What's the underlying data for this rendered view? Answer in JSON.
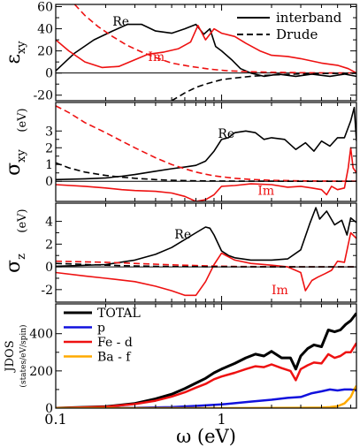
{
  "colors": {
    "black": "#000000",
    "red": "#ee1111",
    "blue": "#1111dd",
    "orange": "#ffaa00"
  },
  "chart_data": [
    {
      "type": "line",
      "xscale": "log",
      "xlim": [
        0.1,
        6.5
      ],
      "ylim": [
        -25,
        62
      ],
      "ylabel_main": "ε",
      "ylabel_sub": "xy",
      "yticks": [
        -20,
        0,
        20,
        40,
        60
      ],
      "legend": {
        "placement": "top-right",
        "items": [
          {
            "label": "interband",
            "style": "solid"
          },
          {
            "label": "Drude",
            "style": "dashed"
          }
        ]
      },
      "annotations": [
        {
          "text": "Re",
          "x": 0.22,
          "y": 43,
          "color": "black"
        },
        {
          "text": "Im",
          "x": 0.36,
          "y": 11,
          "color": "red"
        }
      ],
      "series": [
        {
          "color": "black",
          "style": "solid",
          "x": [
            0.1,
            0.13,
            0.17,
            0.22,
            0.27,
            0.33,
            0.4,
            0.5,
            0.6,
            0.7,
            0.78,
            0.85,
            0.92,
            1.0,
            1.15,
            1.3,
            1.5,
            1.8,
            2.2,
            2.8,
            3.5,
            4.5,
            5.5,
            6.5
          ],
          "y": [
            2,
            18,
            30,
            38,
            44,
            44,
            38,
            36,
            40,
            44,
            35,
            40,
            24,
            20,
            12,
            4,
            0,
            -3,
            -1,
            -3,
            -1,
            -3,
            -1,
            -3
          ]
        },
        {
          "color": "red",
          "style": "solid",
          "x": [
            0.1,
            0.12,
            0.15,
            0.19,
            0.24,
            0.3,
            0.36,
            0.45,
            0.55,
            0.65,
            0.72,
            0.8,
            0.9,
            1.0,
            1.2,
            1.4,
            1.7,
            2.0,
            2.5,
            3.0,
            4.0,
            5.0,
            5.8,
            6.5
          ],
          "y": [
            30,
            20,
            10,
            5,
            6,
            12,
            17,
            19,
            22,
            28,
            43,
            30,
            40,
            36,
            33,
            27,
            20,
            16,
            15,
            13,
            9,
            7,
            4,
            0
          ]
        },
        {
          "color": "red",
          "style": "dashed",
          "x": [
            0.13,
            0.15,
            0.18,
            0.22,
            0.27,
            0.33,
            0.4,
            0.5,
            0.65,
            0.85,
            1.1,
            1.5,
            2.0,
            3.0,
            4.5,
            6.5
          ],
          "y": [
            62,
            52,
            42,
            33,
            25,
            19,
            14,
            9,
            6,
            3.5,
            2,
            1.2,
            0.7,
            0.3,
            0.1,
            0.05
          ]
        },
        {
          "color": "black",
          "style": "dashed",
          "x": [
            0.5,
            0.6,
            0.7,
            0.8,
            1.0,
            1.2,
            1.5,
            2.0,
            3.0,
            4.5,
            6.5
          ],
          "y": [
            -25,
            -18,
            -13,
            -10,
            -6,
            -4.5,
            -3,
            -1.8,
            -0.8,
            -0.35,
            -0.15
          ]
        }
      ]
    },
    {
      "type": "line",
      "xscale": "log",
      "xlim": [
        0.1,
        6.5
      ],
      "ylim": [
        -1.2,
        4.7
      ],
      "ylabel_main": "σ",
      "ylabel_sub": "xy",
      "ylabel_unit": "(eV)",
      "yticks": [
        0,
        1,
        2,
        3
      ],
      "annotations": [
        {
          "text": "Re",
          "x": 0.95,
          "y": 2.6,
          "color": "black"
        },
        {
          "text": "Im",
          "x": 1.65,
          "y": -0.8,
          "color": "red"
        }
      ],
      "series": [
        {
          "color": "black",
          "style": "solid",
          "x": [
            0.1,
            0.15,
            0.2,
            0.25,
            0.3,
            0.4,
            0.5,
            0.6,
            0.7,
            0.8,
            0.9,
            1.0,
            1.1,
            1.2,
            1.4,
            1.6,
            1.8,
            2.0,
            2.4,
            2.8,
            3.2,
            3.6,
            4.0,
            4.5,
            5.0,
            5.5,
            6.0,
            6.3,
            6.5
          ],
          "y": [
            0.1,
            0.15,
            0.2,
            0.3,
            0.4,
            0.6,
            0.75,
            0.85,
            0.95,
            1.2,
            1.8,
            2.5,
            2.6,
            2.9,
            3.0,
            2.9,
            2.5,
            2.6,
            2.5,
            1.9,
            2.3,
            1.8,
            2.4,
            2.1,
            2.6,
            2.6,
            3.6,
            4.4,
            2.4
          ]
        },
        {
          "color": "red",
          "style": "solid",
          "x": [
            0.1,
            0.15,
            0.2,
            0.25,
            0.3,
            0.4,
            0.5,
            0.6,
            0.7,
            0.8,
            0.9,
            1.0,
            1.2,
            1.5,
            2.0,
            2.5,
            3.0,
            3.5,
            4.0,
            4.3,
            4.6,
            5.0,
            5.5,
            5.8,
            6.0,
            6.2,
            6.5
          ],
          "y": [
            -0.2,
            -0.3,
            -0.4,
            -0.5,
            -0.55,
            -0.6,
            -0.7,
            -0.9,
            -1.2,
            -1.1,
            -0.8,
            -0.3,
            -0.25,
            -0.15,
            -0.2,
            -0.35,
            -0.3,
            -0.4,
            -0.5,
            -0.8,
            -0.3,
            -0.5,
            -0.4,
            0.8,
            2.0,
            0.8,
            0.5
          ]
        },
        {
          "color": "red",
          "style": "dashed",
          "x": [
            0.1,
            0.12,
            0.15,
            0.2,
            0.25,
            0.3,
            0.4,
            0.5,
            0.6,
            0.7,
            0.8,
            0.9,
            1.0,
            1.2,
            1.5,
            2.0,
            3.0,
            4.5,
            6.5
          ],
          "y": [
            4.5,
            4.1,
            3.5,
            2.9,
            2.4,
            2.0,
            1.4,
            1.0,
            0.75,
            0.55,
            0.42,
            0.33,
            0.27,
            0.18,
            0.11,
            0.06,
            0.025,
            0.01,
            0.005
          ]
        },
        {
          "color": "black",
          "style": "dashed",
          "x": [
            0.1,
            0.12,
            0.15,
            0.2,
            0.25,
            0.3,
            0.4,
            0.5,
            0.7,
            1.0,
            1.5,
            2.0,
            3.0,
            4.5,
            6.5
          ],
          "y": [
            1.1,
            0.8,
            0.55,
            0.35,
            0.25,
            0.18,
            0.1,
            0.06,
            0.03,
            0.015,
            0.007,
            0.004,
            0.002,
            0.001,
            0.0005
          ]
        }
      ]
    },
    {
      "type": "line",
      "xscale": "log",
      "xlim": [
        0.1,
        6.5
      ],
      "ylim": [
        -3.1,
        5.6
      ],
      "ylabel_main": "σ",
      "ylabel_sub": "z",
      "ylabel_unit": "(eV)",
      "yticks": [
        -2,
        0,
        2,
        4
      ],
      "annotations": [
        {
          "text": "Re",
          "x": 0.52,
          "y": 2.5,
          "color": "black"
        },
        {
          "text": "Im",
          "x": 2.0,
          "y": -2.4,
          "color": "red"
        }
      ],
      "series": [
        {
          "color": "black",
          "style": "solid",
          "x": [
            0.1,
            0.2,
            0.3,
            0.4,
            0.5,
            0.6,
            0.7,
            0.8,
            0.85,
            0.9,
            1.0,
            1.1,
            1.2,
            1.5,
            2.0,
            2.5,
            3.0,
            3.4,
            3.7,
            3.9,
            4.3,
            4.8,
            5.3,
            5.7,
            6.0,
            6.5
          ],
          "y": [
            0.05,
            0.2,
            0.6,
            1.1,
            1.7,
            2.4,
            3.0,
            3.5,
            3.4,
            2.8,
            1.4,
            1.0,
            0.8,
            0.6,
            0.6,
            0.7,
            1.5,
            3.8,
            5.2,
            4.2,
            4.9,
            3.7,
            4.1,
            2.8,
            4.3,
            3.9
          ]
        },
        {
          "color": "red",
          "style": "solid",
          "x": [
            0.1,
            0.15,
            0.2,
            0.3,
            0.4,
            0.5,
            0.6,
            0.7,
            0.8,
            0.9,
            1.0,
            1.2,
            1.5,
            2.0,
            2.5,
            3.0,
            3.2,
            3.5,
            3.8,
            4.2,
            4.6,
            5.0,
            5.5,
            6.0,
            6.5
          ],
          "y": [
            -0.5,
            -0.8,
            -1.0,
            -1.3,
            -1.7,
            -2.1,
            -2.5,
            -2.5,
            -1.3,
            0.2,
            1.2,
            0.6,
            0.3,
            0.15,
            0.0,
            -0.5,
            -2.1,
            -1.2,
            -0.9,
            -0.6,
            -0.3,
            0.5,
            0.4,
            3.0,
            2.5
          ]
        },
        {
          "color": "red",
          "style": "dashed",
          "x": [
            0.1,
            0.2,
            0.3,
            0.5,
            0.8,
            1.2,
            2.0,
            3.0,
            4.5,
            6.5
          ],
          "y": [
            0.5,
            0.4,
            0.3,
            0.18,
            0.09,
            0.04,
            0.015,
            0.007,
            0.003,
            0.001
          ]
        },
        {
          "color": "black",
          "style": "dashed",
          "x": [
            0.1,
            0.2,
            0.3,
            0.5,
            0.8,
            1.2,
            2.0,
            3.0,
            4.5,
            6.5
          ],
          "y": [
            0.3,
            0.15,
            0.08,
            0.03,
            0.012,
            0.005,
            0.002,
            0.001,
            0.0005,
            0.0002
          ]
        }
      ]
    },
    {
      "type": "line",
      "xscale": "log",
      "xlim": [
        0.1,
        6.5
      ],
      "ylim": [
        0,
        560
      ],
      "xlabel": "ω  (eV)",
      "xtick_labels": [
        "0.1",
        "1"
      ],
      "ylabel_main": "JDOS",
      "ylabel_unit": "(states/eV/spin)",
      "yticks": [
        0,
        200,
        400
      ],
      "legend": {
        "placement": "top-left",
        "items": [
          {
            "label": "TOTAL",
            "color": "black"
          },
          {
            "label": "p",
            "color": "blue"
          },
          {
            "label": "Fe - d",
            "color": "red"
          },
          {
            "label": "Ba - f",
            "color": "orange"
          }
        ]
      },
      "series": [
        {
          "name": "TOTAL",
          "color": "black",
          "width": 3,
          "x": [
            0.1,
            0.2,
            0.3,
            0.4,
            0.5,
            0.6,
            0.7,
            0.8,
            0.9,
            1.0,
            1.2,
            1.4,
            1.6,
            1.8,
            2.0,
            2.3,
            2.6,
            2.8,
            3.0,
            3.3,
            3.6,
            4.0,
            4.4,
            4.8,
            5.2,
            5.6,
            6.0,
            6.5
          ],
          "y": [
            0,
            8,
            25,
            50,
            75,
            105,
            135,
            160,
            190,
            210,
            240,
            270,
            290,
            280,
            305,
            270,
            270,
            210,
            280,
            320,
            340,
            330,
            420,
            410,
            420,
            450,
            470,
            510
          ]
        },
        {
          "name": "p",
          "color": "blue",
          "width": 2.5,
          "x": [
            0.1,
            0.3,
            0.5,
            0.7,
            1.0,
            1.5,
            2.0,
            2.5,
            3.0,
            3.5,
            4.0,
            4.5,
            5.0,
            5.5,
            6.0,
            6.5
          ],
          "y": [
            0,
            2,
            5,
            12,
            20,
            35,
            45,
            55,
            60,
            80,
            90,
            100,
            95,
            100,
            100,
            95
          ]
        },
        {
          "name": "Fe - d",
          "color": "red",
          "width": 2.5,
          "x": [
            0.1,
            0.2,
            0.3,
            0.4,
            0.5,
            0.6,
            0.7,
            0.8,
            0.9,
            1.0,
            1.2,
            1.4,
            1.6,
            1.8,
            2.0,
            2.3,
            2.6,
            2.8,
            3.0,
            3.3,
            3.6,
            4.0,
            4.4,
            4.8,
            5.2,
            5.6,
            6.0,
            6.5
          ],
          "y": [
            0,
            7,
            22,
            40,
            62,
            85,
            110,
            130,
            155,
            170,
            190,
            210,
            225,
            220,
            235,
            215,
            200,
            150,
            210,
            230,
            245,
            240,
            290,
            270,
            280,
            300,
            300,
            350
          ]
        },
        {
          "name": "Ba - f",
          "color": "orange",
          "width": 2.5,
          "x": [
            0.1,
            1.0,
            2.0,
            3.0,
            4.0,
            4.5,
            5.0,
            5.5,
            6.0,
            6.3,
            6.5
          ],
          "y": [
            0,
            0,
            1,
            2,
            3,
            5,
            10,
            25,
            60,
            100,
            120
          ]
        }
      ]
    }
  ]
}
